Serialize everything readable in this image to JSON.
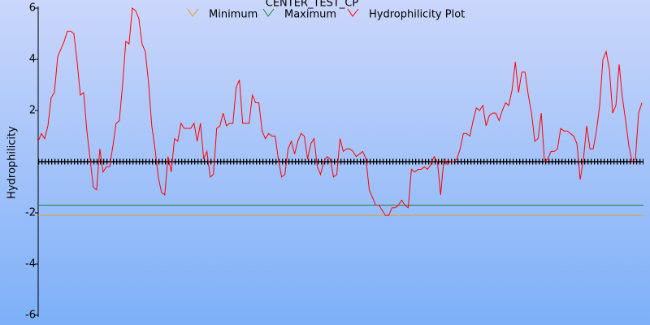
{
  "chart_data": {
    "type": "line",
    "title": "CENTER_TEST_CP",
    "y_label": "Hydrophilicity",
    "ylim": [
      -6,
      6
    ],
    "yticks": [
      -6,
      -4,
      -2,
      2,
      4,
      6
    ],
    "series": [
      {
        "name": "Minimum",
        "color": "#e0a020",
        "value": -2.1
      },
      {
        "name": "Maximum",
        "color": "#208040",
        "value": -1.7
      },
      {
        "name": "Hydrophilicity Plot",
        "color": "#ff0000",
        "values": [
          0.8,
          1.1,
          0.9,
          1.4,
          2.5,
          2.7,
          4.1,
          4.4,
          4.7,
          5.1,
          5.1,
          5.0,
          3.9,
          2.6,
          2.7,
          1.2,
          0.1,
          -1.0,
          -1.1,
          0.5,
          -0.4,
          -0.2,
          -0.2,
          0.6,
          1.5,
          1.6,
          3.0,
          4.7,
          4.6,
          6.0,
          5.9,
          5.6,
          4.6,
          4.3,
          3.1,
          1.4,
          0.5,
          -0.6,
          -1.2,
          -1.3,
          0.2,
          -0.4,
          0.9,
          0.8,
          1.5,
          1.3,
          1.3,
          1.3,
          1.5,
          0.8,
          1.5,
          0.1,
          0.4,
          -0.6,
          -0.5,
          1.3,
          1.4,
          1.9,
          1.4,
          1.5,
          1.5,
          2.9,
          3.2,
          1.5,
          1.5,
          1.5,
          2.6,
          2.3,
          2.3,
          1.2,
          0.9,
          1.1,
          1.0,
          1.0,
          0.1,
          -0.6,
          -0.5,
          0.5,
          0.8,
          0.3,
          0.8,
          1.1,
          1.0,
          0.1,
          0.7,
          0.9,
          -0.2,
          -0.5,
          0.0,
          0.2,
          0.1,
          -0.6,
          -0.5,
          0.9,
          0.4,
          0.5,
          0.5,
          0.4,
          0.2,
          0.3,
          0.4,
          0.1,
          -1.1,
          -1.4,
          -1.7,
          -1.7,
          -1.9,
          -2.1,
          -2.1,
          -1.8,
          -1.8,
          -1.7,
          -1.5,
          -1.7,
          -1.8,
          -0.3,
          -0.4,
          -0.3,
          -0.3,
          -0.2,
          -0.3,
          -0.1,
          0.2,
          0.0,
          -1.3,
          0.1,
          -0.1,
          0.0,
          0.0,
          0.1,
          0.5,
          1.1,
          1.1,
          1.0,
          1.6,
          2.1,
          2.0,
          2.2,
          1.4,
          1.8,
          1.9,
          1.9,
          1.6,
          2.0,
          2.3,
          2.2,
          2.8,
          3.9,
          2.7,
          3.5,
          3.5,
          2.6,
          1.9,
          0.8,
          0.9,
          1.9,
          0.0,
          0.1,
          0.4,
          0.4,
          0.5,
          1.3,
          1.2,
          1.2,
          1.1,
          1.0,
          0.7,
          -0.7,
          0.1,
          1.4,
          0.5,
          0.5,
          1.2,
          2.2,
          4.0,
          4.3,
          3.6,
          1.9,
          2.2,
          3.8,
          2.5,
          1.6,
          0.6,
          0.0,
          0.1,
          1.9,
          2.3
        ]
      }
    ]
  }
}
